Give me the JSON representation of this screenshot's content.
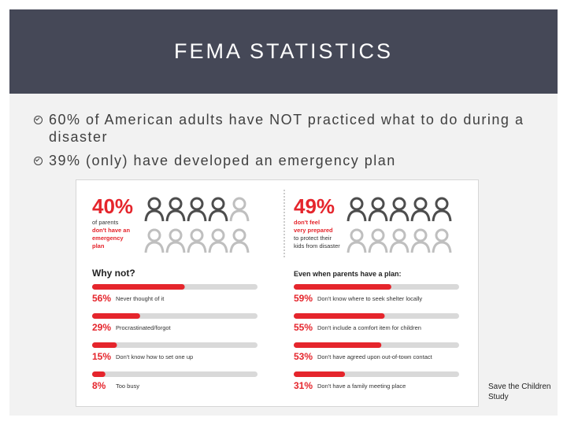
{
  "slide": {
    "title": "FEMA STATISTICS",
    "bullets": [
      "60% of American adults have NOT practiced what to do during a disaster",
      "39% (only) have developed an emergency plan"
    ],
    "citation": "Save the Children Study"
  },
  "colors": {
    "title_bg": "#454857",
    "accent_red": "#e5252c",
    "track_gray": "#d9d9d9",
    "figure_gray": "#bfbfbf",
    "figure_dark": "#4d4d4d"
  },
  "infographic": {
    "left_stat": {
      "value": "40%",
      "lines": [
        "of parents",
        "don't have an",
        "emergency",
        "plan"
      ],
      "filled_fraction": 0.4
    },
    "right_stat": {
      "value": "49%",
      "lines": [
        "don't feel",
        "very prepared",
        "to protect their",
        "kids from disaster"
      ],
      "filled_fraction": 0.49
    },
    "left_heading": "Why not?",
    "right_heading": "Even when parents have a plan:",
    "left_bars": [
      {
        "pct_label": "56%",
        "label": "Never thought of it",
        "value": 56
      },
      {
        "pct_label": "29%",
        "label": "Procrastinated/forgot",
        "value": 29
      },
      {
        "pct_label": "15%",
        "label": "Don't know how to set one up",
        "value": 15
      },
      {
        "pct_label": "8%",
        "label": "Too busy",
        "value": 8
      }
    ],
    "right_bars": [
      {
        "pct_label": "59%",
        "label": "Don't know where to seek shelter locally",
        "value": 59
      },
      {
        "pct_label": "55%",
        "label": "Don't include a comfort item for children",
        "value": 55
      },
      {
        "pct_label": "53%",
        "label": "Don't have agreed upon out-of-town contact",
        "value": 53
      },
      {
        "pct_label": "31%",
        "label": "Don't have a family meeting place",
        "value": 31
      }
    ]
  }
}
